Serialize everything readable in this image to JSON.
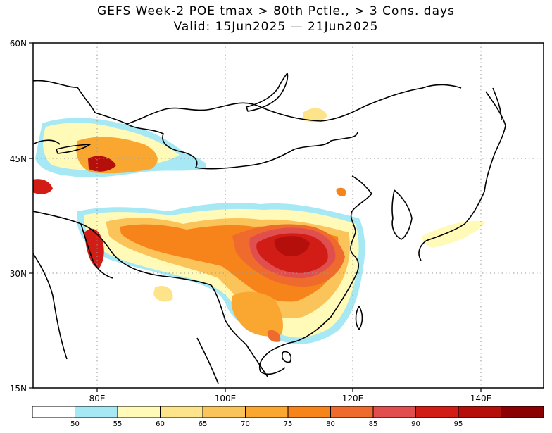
{
  "title": {
    "line1": "GEFS Week-2 POE tmax > 80th Pctle., > 3 Cons. days",
    "line2": "Valid: 15Jun2025 — 21Jun2025"
  },
  "axes": {
    "lat_labels": [
      "60N",
      "45N",
      "30N",
      "15N"
    ],
    "lon_labels": [
      "80E",
      "100E",
      "120E",
      "140E"
    ]
  },
  "colorbar": {
    "colors": [
      "#ffffff",
      "#a6e8f4",
      "#fffab8",
      "#fde38a",
      "#fbc45a",
      "#f9a730",
      "#f7841b",
      "#ef6a2d",
      "#e04e4e",
      "#d21d16",
      "#b40f0b",
      "#8b0000"
    ],
    "labels": [
      "50",
      "55",
      "60",
      "65",
      "70",
      "75",
      "80",
      "85",
      "90",
      "95"
    ]
  }
}
